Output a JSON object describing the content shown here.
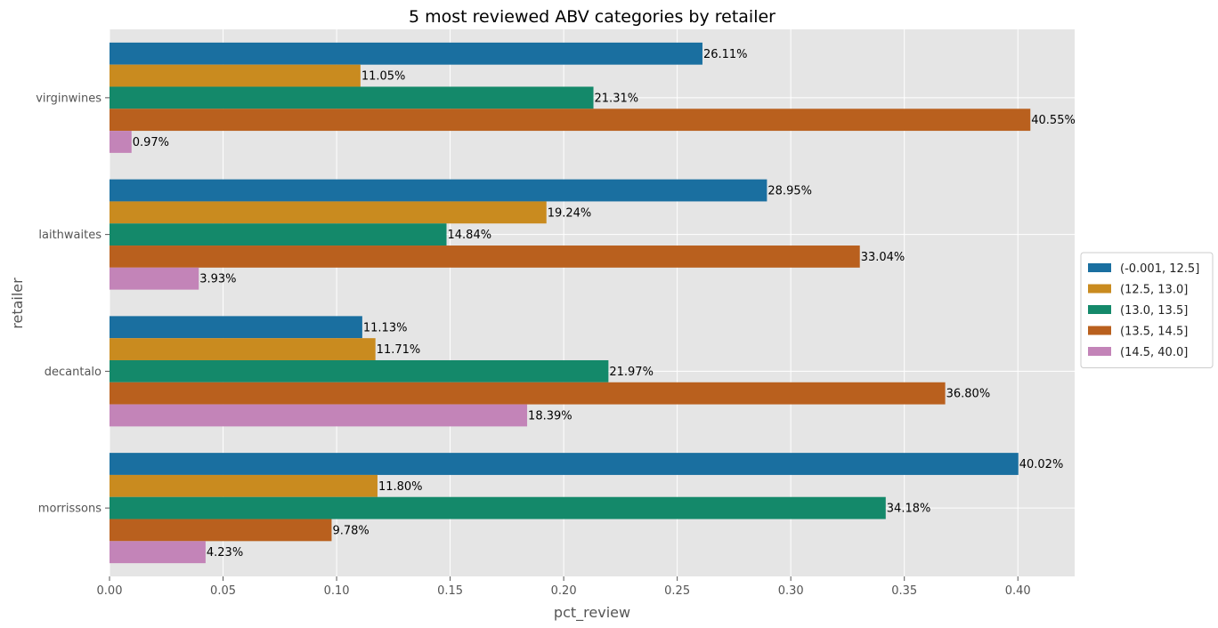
{
  "chart_data": {
    "type": "bar",
    "orientation": "horizontal",
    "title": "5 most reviewed ABV categories by retailer",
    "xlabel": "pct_review",
    "ylabel": "retailer",
    "xlim": [
      0,
      0.425
    ],
    "xticks": [
      0.0,
      0.05,
      0.1,
      0.15,
      0.2,
      0.25,
      0.3,
      0.35,
      0.4
    ],
    "xtick_labels": [
      "0.00",
      "0.05",
      "0.10",
      "0.15",
      "0.20",
      "0.25",
      "0.30",
      "0.35",
      "0.40"
    ],
    "categories": [
      "virginwines",
      "laithwaites",
      "decantalo",
      "morrissons"
    ],
    "grid": true,
    "legend_position": "center-right",
    "series": [
      {
        "name": "(-0.001, 12.5]",
        "color": "#1a6fa0",
        "values": [
          0.2611,
          0.2895,
          0.1113,
          0.4002
        ],
        "labels": [
          "26.11%",
          "28.95%",
          "11.13%",
          "40.02%"
        ]
      },
      {
        "name": "(12.5, 13.0]",
        "color": "#c98b1f",
        "values": [
          0.1105,
          0.1924,
          0.1171,
          0.118
        ],
        "labels": [
          "11.05%",
          "19.24%",
          "11.71%",
          "11.80%"
        ]
      },
      {
        "name": "(13.0, 13.5]",
        "color": "#14896a",
        "values": [
          0.2131,
          0.1484,
          0.2197,
          0.3418
        ],
        "labels": [
          "21.31%",
          "14.84%",
          "21.97%",
          "34.18%"
        ]
      },
      {
        "name": "(13.5, 14.5]",
        "color": "#b9601e",
        "values": [
          0.4055,
          0.3304,
          0.368,
          0.0978
        ],
        "labels": [
          "40.55%",
          "33.04%",
          "36.80%",
          "9.78%"
        ]
      },
      {
        "name": "(14.5, 40.0]",
        "color": "#c384b8",
        "values": [
          0.0097,
          0.0393,
          0.1839,
          0.0423
        ],
        "labels": [
          "0.97%",
          "3.93%",
          "18.39%",
          "4.23%"
        ]
      }
    ]
  }
}
